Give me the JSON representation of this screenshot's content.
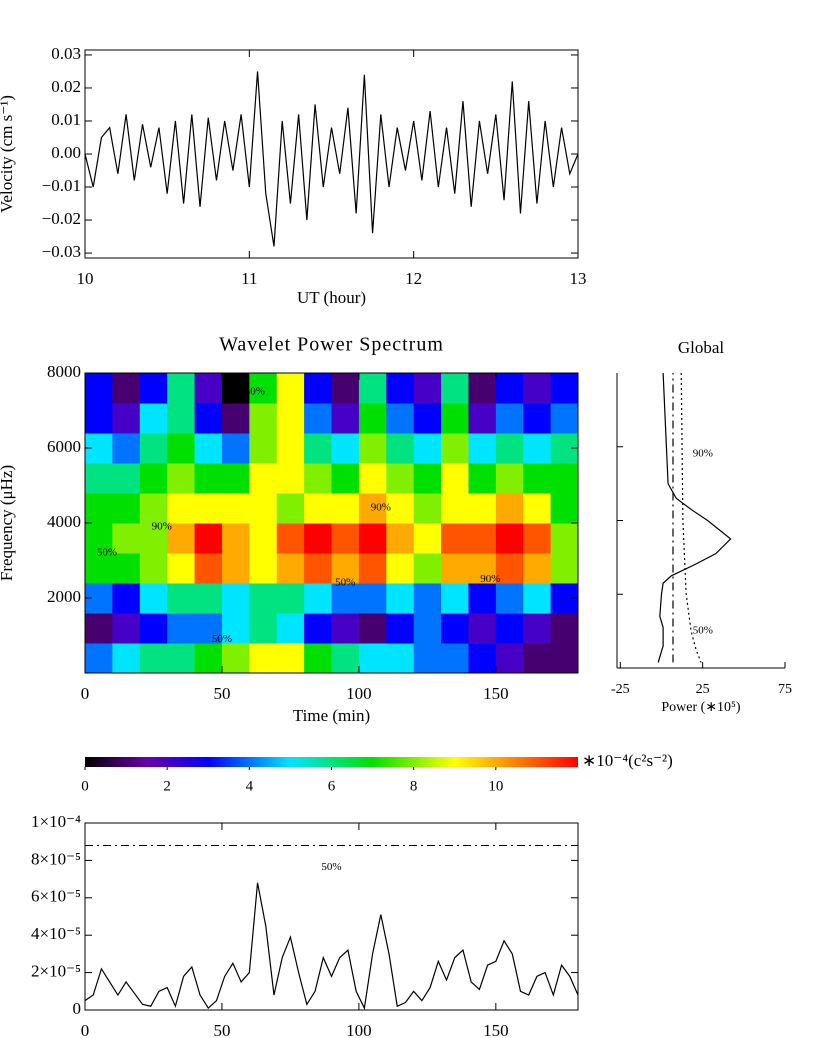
{
  "chart_data": [
    {
      "type": "line",
      "xlabel": "UT (hour)",
      "ylabel": "Velocity (cm s⁻¹)",
      "xlim": [
        10,
        13
      ],
      "xticks": [
        10,
        11,
        12,
        13
      ],
      "ylim": [
        -0.0315,
        0.0315
      ],
      "yticks": [
        0.03,
        0.02,
        0.01,
        {
          "value": 0,
          "label": "0.00"
        },
        {
          "value": -0.01,
          "label": "−0.01"
        },
        {
          "value": -0.02,
          "label": "−0.02"
        },
        {
          "value": -0.03,
          "label": "−0.03"
        }
      ],
      "color": "#000000",
      "x": [
        10,
        10.05,
        10.1,
        10.15,
        10.2,
        10.25,
        10.3,
        10.35,
        10.4,
        10.45,
        10.5,
        10.55,
        10.6,
        10.65,
        10.7,
        10.75,
        10.8,
        10.85,
        10.9,
        10.95,
        11,
        11.05,
        11.1,
        11.15,
        11.2,
        11.25,
        11.3,
        11.35,
        11.4,
        11.45,
        11.5,
        11.55,
        11.6,
        11.65,
        11.7,
        11.75,
        11.8,
        11.85,
        11.9,
        11.95,
        12,
        12.05,
        12.1,
        12.15,
        12.2,
        12.25,
        12.3,
        12.35,
        12.4,
        12.45,
        12.5,
        12.55,
        12.6,
        12.65,
        12.7,
        12.75,
        12.8,
        12.85,
        12.9,
        12.95,
        13
      ],
      "values": [
        0.0,
        -0.01,
        0.005,
        0.008,
        -0.006,
        0.012,
        -0.008,
        0.009,
        -0.004,
        0.008,
        -0.012,
        0.01,
        -0.015,
        0.012,
        -0.016,
        0.011,
        -0.008,
        0.01,
        -0.005,
        0.012,
        -0.01,
        0.025,
        -0.012,
        -0.028,
        0.01,
        -0.015,
        0.012,
        -0.02,
        0.015,
        -0.01,
        0.008,
        -0.006,
        0.014,
        -0.018,
        0.024,
        -0.024,
        0.012,
        -0.01,
        0.008,
        -0.005,
        0.01,
        -0.008,
        0.013,
        -0.01,
        0.008,
        -0.012,
        0.016,
        -0.016,
        0.01,
        -0.006,
        0.012,
        -0.014,
        0.022,
        -0.018,
        0.016,
        -0.015,
        0.01,
        -0.01,
        0.008,
        -0.006,
        0.0
      ]
    },
    {
      "type": "heatmap",
      "title": "Wavelet Power Spectrum",
      "xlabel": "Time (min)",
      "ylabel": "Frequency (μHz)",
      "xlim": [
        0,
        180
      ],
      "xticks": [
        0,
        50,
        100,
        150
      ],
      "ylim": [
        0,
        8000
      ],
      "yticks": [
        2000,
        4000,
        6000,
        8000
      ],
      "x": [
        5,
        15,
        25,
        35,
        45,
        55,
        65,
        75,
        85,
        95,
        105,
        115,
        125,
        135,
        145,
        155,
        165,
        175
      ],
      "y": [
        400,
        1200,
        2000,
        2800,
        3600,
        4400,
        5200,
        6000,
        6800,
        7600
      ],
      "z": [
        [
          4,
          5,
          6,
          6,
          7,
          8,
          9,
          9,
          7,
          6,
          5,
          5,
          4,
          4,
          3,
          2,
          1,
          1
        ],
        [
          1,
          2,
          3,
          4,
          4,
          5,
          6,
          5,
          3,
          2,
          1,
          3,
          4,
          3,
          2,
          3,
          2,
          1
        ],
        [
          4,
          3,
          5,
          6,
          6,
          5,
          6,
          6,
          5,
          4,
          4,
          5,
          4,
          5,
          3,
          4,
          5,
          3
        ],
        [
          7,
          7,
          8,
          9,
          11,
          10,
          9,
          10,
          11,
          10,
          11,
          9,
          8,
          10,
          10,
          11,
          10,
          8
        ],
        [
          7,
          8,
          8,
          10,
          12,
          10,
          9,
          11,
          12,
          11,
          12,
          10,
          9,
          11,
          11,
          12,
          11,
          8
        ],
        [
          7,
          7,
          8,
          9,
          9,
          9,
          9,
          8,
          9,
          9,
          10,
          9,
          8,
          9,
          9,
          10,
          9,
          7
        ],
        [
          6,
          6,
          7,
          8,
          7,
          7,
          9,
          9,
          8,
          7,
          9,
          8,
          7,
          9,
          7,
          8,
          7,
          7
        ],
        [
          5,
          4,
          6,
          7,
          5,
          4,
          8,
          9,
          6,
          5,
          8,
          6,
          5,
          8,
          5,
          6,
          5,
          6
        ],
        [
          3,
          2,
          5,
          6,
          3,
          1,
          8,
          9,
          4,
          2,
          7,
          4,
          3,
          7,
          2,
          4,
          3,
          4
        ],
        [
          3,
          1,
          3,
          6,
          2,
          0,
          7,
          9,
          3,
          1,
          6,
          3,
          2,
          6,
          1,
          3,
          2,
          3
        ]
      ],
      "colorscale": [
        [
          0,
          "#000000"
        ],
        [
          1.5,
          "#6a00a8"
        ],
        [
          3,
          "#0000ff"
        ],
        [
          5,
          "#00e5ff"
        ],
        [
          7,
          "#00e000"
        ],
        [
          9,
          "#ffff00"
        ],
        [
          10.5,
          "#ff8000"
        ],
        [
          12,
          "#ff0000"
        ]
      ],
      "annotations": [
        {
          "text": "50%",
          "x": 62,
          "y": 7500
        },
        {
          "text": "90%",
          "x": 28,
          "y": 3900
        },
        {
          "text": "50%",
          "x": 8,
          "y": 3200
        },
        {
          "text": "90%",
          "x": 108,
          "y": 4400
        },
        {
          "text": "50%",
          "x": 95,
          "y": 2400
        },
        {
          "text": "90%",
          "x": 148,
          "y": 2500
        },
        {
          "text": "50%",
          "x": 50,
          "y": 900
        }
      ],
      "colorbar": {
        "lim": [
          0,
          12
        ],
        "ticks": [
          0,
          2,
          4,
          6,
          8,
          10
        ],
        "label": "∗10⁻⁴(c²s⁻²)"
      }
    },
    {
      "type": "profile",
      "title": "Global",
      "xlabel": "Power (∗10⁵)",
      "xlim": [
        -27,
        75
      ],
      "xticks": [
        -25,
        25,
        75
      ],
      "ylim": [
        0,
        8000
      ],
      "series": [
        {
          "color": "#000000",
          "dash": "solid",
          "y": [
            8000,
            6000,
            5000,
            4600,
            4300,
            4000,
            3500,
            3100,
            2800,
            2500,
            2300,
            2000,
            1400,
            1100,
            600,
            300,
            150
          ],
          "values": [
            1,
            3,
            4,
            9,
            18,
            28,
            42,
            33,
            20,
            6,
            1,
            0,
            -1,
            1,
            1,
            -1,
            -2
          ]
        },
        {
          "color": "#000000",
          "dash": "dashdot",
          "y": [
            150,
            8000
          ],
          "values": [
            7,
            7
          ]
        },
        {
          "color": "#000000",
          "dash": "dotted",
          "y": [
            8000,
            4000,
            2000,
            1000,
            500,
            150
          ],
          "values": [
            12,
            13,
            15,
            18,
            21,
            24
          ]
        }
      ],
      "annotations": [
        {
          "text": "90%",
          "x": 19,
          "y": 5800
        },
        {
          "text": "50%",
          "x": 19,
          "y": 1000
        }
      ]
    },
    {
      "type": "line",
      "xlim": [
        0,
        180
      ],
      "xticks": [
        0,
        50,
        100,
        150
      ],
      "ylim": [
        0,
        0.0001
      ],
      "yticks": [
        0,
        {
          "value": 2e-05,
          "label": "2×10⁻⁵"
        },
        {
          "value": 4e-05,
          "label": "4×10⁻⁵"
        },
        {
          "value": 6e-05,
          "label": "6×10⁻⁵"
        },
        {
          "value": 8e-05,
          "label": "8×10⁻⁵"
        },
        {
          "value": 0.0001,
          "label": "1×10⁻⁴"
        }
      ],
      "color": "#000000",
      "threshold": {
        "value": 8.8e-05,
        "label": "50%"
      },
      "x": [
        0,
        3,
        6,
        9,
        12,
        15,
        18,
        21,
        24,
        27,
        30,
        33,
        36,
        39,
        42,
        45,
        48,
        51,
        54,
        57,
        60,
        63,
        66,
        69,
        72,
        75,
        78,
        81,
        84,
        87,
        90,
        93,
        96,
        99,
        102,
        105,
        108,
        111,
        114,
        117,
        120,
        123,
        126,
        129,
        132,
        135,
        138,
        141,
        144,
        147,
        150,
        153,
        156,
        159,
        162,
        165,
        168,
        171,
        174,
        177,
        180
      ],
      "values": [
        5e-06,
        8e-06,
        2.2e-05,
        1.5e-05,
        8e-06,
        1.5e-05,
        9e-06,
        3e-06,
        2e-06,
        1e-05,
        1.2e-05,
        2e-06,
        1.8e-05,
        2.3e-05,
        8e-06,
        1e-06,
        5e-06,
        1.8e-05,
        2.5e-05,
        1.5e-05,
        2e-05,
        6.8e-05,
        4.5e-05,
        8e-06,
        2.8e-05,
        3.9e-05,
        2e-05,
        3e-06,
        1e-05,
        2.8e-05,
        1.8e-05,
        2.8e-05,
        3.2e-05,
        1e-05,
        1e-06,
        3e-05,
        5.1e-05,
        3e-05,
        2e-06,
        4e-06,
        1e-05,
        5e-06,
        1.2e-05,
        2.6e-05,
        1.6e-05,
        2.8e-05,
        3.2e-05,
        1.5e-05,
        1.1e-05,
        2.4e-05,
        2.6e-05,
        3.7e-05,
        3e-05,
        1e-05,
        8e-06,
        1.8e-05,
        2e-05,
        8e-06,
        2.4e-05,
        1.8e-05,
        8e-06
      ]
    }
  ]
}
